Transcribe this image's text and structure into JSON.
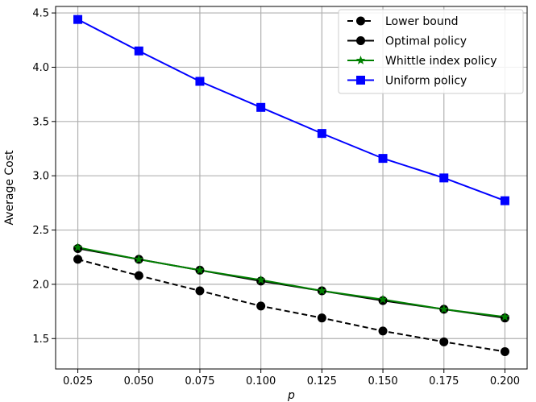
{
  "chart_data": {
    "type": "line",
    "xlabel": "p",
    "ylabel": "Average Cost",
    "x": [
      0.025,
      0.05,
      0.075,
      0.1,
      0.125,
      0.15,
      0.175,
      0.2
    ],
    "x_tick_labels": [
      "0.025",
      "0.050",
      "0.075",
      "0.100",
      "0.125",
      "0.150",
      "0.175",
      "0.200"
    ],
    "y_ticks": [
      1.5,
      2.0,
      2.5,
      3.0,
      3.5,
      4.0,
      4.5
    ],
    "y_tick_labels": [
      "1.5",
      "2.0",
      "2.5",
      "3.0",
      "3.5",
      "4.0",
      "4.5"
    ],
    "xlim": [
      0.0159,
      0.2091
    ],
    "ylim": [
      1.22,
      4.56
    ],
    "grid": true,
    "legend_position": "top-right",
    "series": [
      {
        "name": "Lower bound",
        "color": "#000000",
        "line": "dashed",
        "marker": "circle",
        "values": [
          2.23,
          2.08,
          1.94,
          1.8,
          1.69,
          1.57,
          1.47,
          1.38
        ]
      },
      {
        "name": "Optimal policy",
        "color": "#000000",
        "line": "solid",
        "marker": "circle",
        "values": [
          2.33,
          2.23,
          2.13,
          2.03,
          1.94,
          1.85,
          1.77,
          1.69
        ]
      },
      {
        "name": "Whittle index policy",
        "color": "#008000",
        "line": "solid",
        "marker": "star",
        "values": [
          2.34,
          2.23,
          2.13,
          2.04,
          1.94,
          1.86,
          1.77,
          1.7
        ]
      },
      {
        "name": "Uniform policy",
        "color": "#0000ff",
        "line": "solid",
        "marker": "square",
        "values": [
          4.44,
          4.15,
          3.87,
          3.63,
          3.39,
          3.16,
          2.98,
          2.77
        ]
      }
    ]
  }
}
